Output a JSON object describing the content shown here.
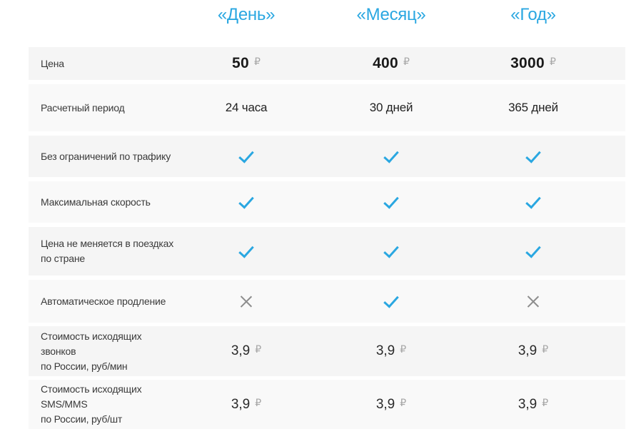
{
  "theme": {
    "accent": "#2aa7e1",
    "cross": "#8d8d8d",
    "row_odd_bg": "#f5f5f5",
    "row_even_bg": "#f9f9f9",
    "currency_color": "#a6a6a6"
  },
  "currency": "₽",
  "header": {
    "columns": [
      "«День»",
      "«Месяц»",
      "«Год»"
    ]
  },
  "rows": [
    {
      "label": "Цена",
      "values": [
        "50",
        "400",
        "3000"
      ]
    },
    {
      "label": "Расчетный период",
      "values": [
        "24 часа",
        "30 дней",
        "365 дней"
      ]
    },
    {
      "label": "Без ограничений по трафику",
      "values": [
        "check",
        "check",
        "check"
      ]
    },
    {
      "label": "Максимальная скорость",
      "values": [
        "check",
        "check",
        "check"
      ]
    },
    {
      "label": "Цена не меняется в поездках\nпо стране",
      "values": [
        "check",
        "check",
        "check"
      ]
    },
    {
      "label": "Автоматическое продление",
      "values": [
        "cross",
        "check",
        "cross"
      ]
    },
    {
      "label": "Стоимость исходящих звонков\nпо России, руб/мин",
      "values": [
        "3,9",
        "3,9",
        "3,9"
      ]
    },
    {
      "label": "Стоимость исходящих SMS/MMS\nпо России, руб/шт",
      "values": [
        "3,9",
        "3,9",
        "3,9"
      ]
    }
  ]
}
